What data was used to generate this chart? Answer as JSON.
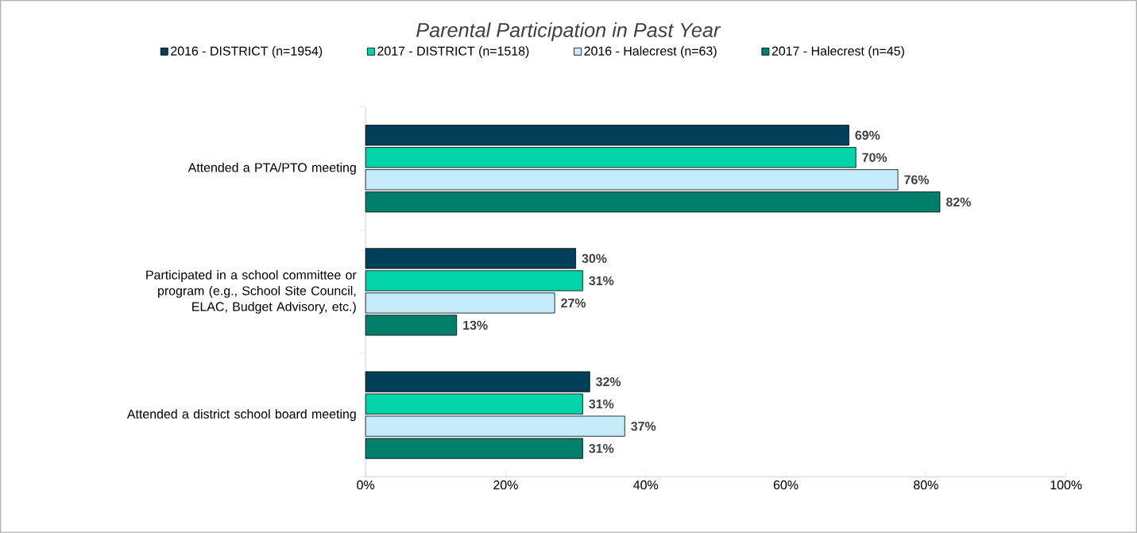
{
  "chart_data": {
    "type": "bar",
    "orientation": "horizontal",
    "title": "Parental Participation in Past Year",
    "categories": [
      "Attended a PTA/PTO meeting",
      "Participated in a school committee or program (e.g., School Site Council, ELAC, Budget Advisory, etc.)",
      "Attended a district school board meeting"
    ],
    "series": [
      {
        "name": "2016 - DISTRICT (n=1954)",
        "color": "#023f58",
        "values": [
          69,
          30,
          32
        ],
        "value_labels": [
          "69%",
          "30%",
          "32%"
        ]
      },
      {
        "name": "2017 - DISTRICT (n=1518)",
        "color": "#00d4a8",
        "values": [
          70,
          31,
          31
        ],
        "value_labels": [
          "70%",
          "31%",
          "31%"
        ]
      },
      {
        "name": "2016 - Halecrest (n=63)",
        "color": "#c6ecfb",
        "values": [
          76,
          27,
          37
        ],
        "value_labels": [
          "76%",
          "27%",
          "37%"
        ]
      },
      {
        "name": "2017 - Halecrest (n=45)",
        "color": "#00806a",
        "values": [
          82,
          13,
          31
        ],
        "value_labels": [
          "82%",
          "13%",
          "31%"
        ]
      }
    ],
    "xlim": [
      0,
      100
    ],
    "xticks": [
      {
        "value": 0,
        "label": "0%"
      },
      {
        "value": 20,
        "label": "20%"
      },
      {
        "value": 40,
        "label": "40%"
      },
      {
        "value": 60,
        "label": "60%"
      },
      {
        "value": 80,
        "label": "80%"
      },
      {
        "value": 100,
        "label": "100%"
      }
    ],
    "legend": "top",
    "grid": false
  }
}
